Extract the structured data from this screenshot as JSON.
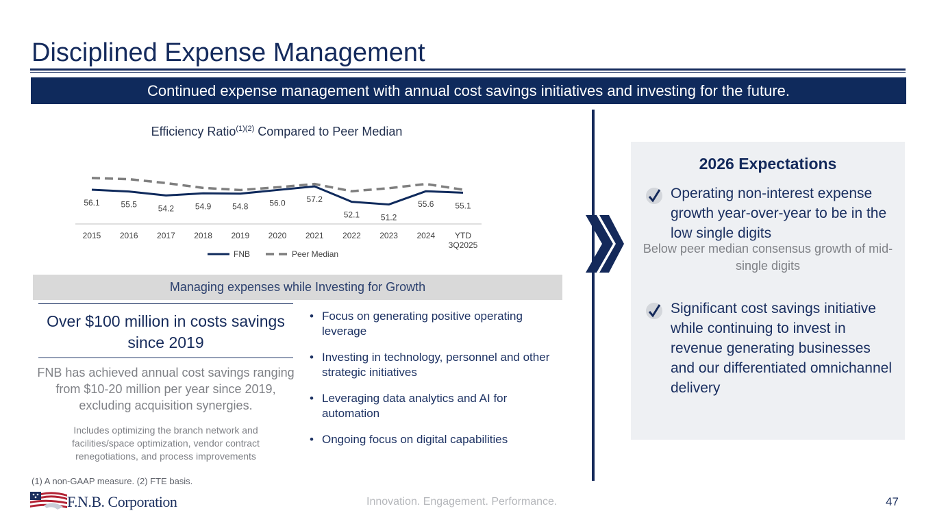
{
  "header": {
    "title": "Disciplined Expense Management",
    "banner": "Continued expense management with annual cost savings initiatives and investing for the future."
  },
  "chart_title": {
    "main": "Efficiency Ratio",
    "sup": "(1)(2)",
    "rest": " Compared to Peer Median"
  },
  "chart_data": {
    "type": "line",
    "title": "Efficiency Ratio(1)(2) Compared to Peer Median",
    "categories": [
      "2015",
      "2016",
      "2017",
      "2018",
      "2019",
      "2020",
      "2021",
      "2022",
      "2023",
      "2024",
      "YTD 3Q2025"
    ],
    "series": [
      {
        "name": "FNB",
        "values": [
          56.1,
          55.5,
          54.2,
          54.9,
          54.8,
          56.0,
          57.2,
          52.1,
          51.2,
          55.6,
          55.1
        ],
        "color": "#0f2a5c",
        "style": "solid",
        "labeled": true
      },
      {
        "name": "Peer Median",
        "values": [
          60.0,
          59.6,
          58.3,
          56.7,
          56.0,
          56.9,
          58.0,
          55.6,
          56.6,
          58.0,
          56.1
        ],
        "color": "#7f7f7f",
        "style": "dashed",
        "labeled": false
      }
    ],
    "legend": [
      "FNB",
      "Peer Median"
    ],
    "legend_position": "bottom",
    "grid": false
  },
  "investing": {
    "bar_label": "Managing expenses while Investing for Growth",
    "headline": "Over $100 million in costs savings since 2019",
    "body": "FNB has achieved annual cost savings ranging from $10-20 million per year since 2019, excluding acquisition synergies.",
    "note": "Includes optimizing the branch network and facilities/space optimization, vendor contract renegotiations, and process improvements",
    "bullets": [
      "Focus on generating positive operating leverage",
      "Investing in technology, personnel and other strategic initiatives",
      "Leveraging data analytics and AI for automation",
      "Ongoing focus on digital capabilities"
    ]
  },
  "expectations": {
    "title": "2026 Expectations",
    "item1": "Operating non-interest expense growth year-over-year to be in the low single digits",
    "item1_sub": "Below peer median consensus growth of mid-single digits",
    "item2": "Significant cost savings initiative while continuing to invest in revenue generating businesses and our differentiated omnichannel delivery"
  },
  "footer": {
    "footnote": "(1) A non-GAAP measure. (2) FTE basis.",
    "logo_text": "F.N.B. Corporation",
    "tagline": "Innovation. Engagement. Performance.",
    "page_number": "47"
  },
  "colors": {
    "navy": "#0f2a5c",
    "gray_bar": "#d9d9d9",
    "panel": "#eef0f3",
    "muted_text": "#7f8186"
  }
}
